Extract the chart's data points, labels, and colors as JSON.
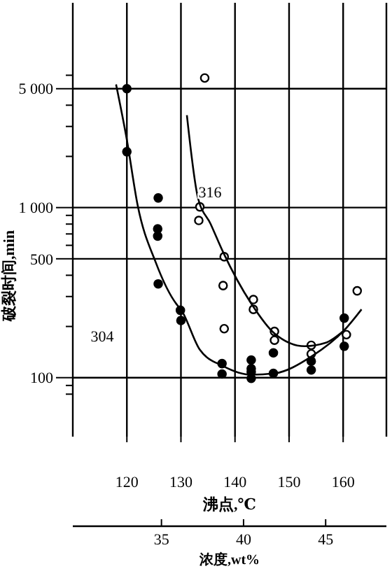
{
  "chart_data": {
    "type": "scatter",
    "xlabel": "沸点,℃",
    "ylabel": "破裂时间,min",
    "x2label": "浓度,wt%",
    "xlim": [
      110,
      168
    ],
    "xticks": [
      120,
      130,
      140,
      150,
      160
    ],
    "x2lim": [
      29.6,
      48.7
    ],
    "x2ticks": [
      35,
      40,
      45
    ],
    "ylim": [
      45,
      16000
    ],
    "log": "y",
    "grid": true,
    "marker": "circle",
    "yticks": [
      {
        "value": 80,
        "label": null
      },
      {
        "value": 90,
        "label": null
      },
      100,
      {
        "value": 200,
        "label": null
      },
      {
        "value": 300,
        "label": null
      },
      {
        "value": 400,
        "label": null
      },
      500,
      {
        "value": 600,
        "label": null
      },
      {
        "value": 700,
        "label": null
      },
      {
        "value": 800,
        "label": null
      },
      {
        "value": 900,
        "label": null
      },
      {
        "value": 1000,
        "label": "1 000"
      },
      {
        "value": 2000,
        "label": null
      },
      {
        "value": 3000,
        "label": null
      },
      {
        "value": 4000,
        "label": null
      },
      {
        "value": 5000,
        "label": "5 000"
      },
      {
        "value": 6000,
        "label": null
      }
    ],
    "series": [
      {
        "color": "#000000",
        "x": [
          120,
          120,
          125.8,
          125.7,
          125.7,
          125.8,
          129.9,
          130,
          137.6,
          137.6,
          143,
          143,
          143,
          143,
          147.1,
          147.1,
          154.1,
          154.1,
          160.2,
          160.2
        ],
        "values": [
          5000,
          2130,
          1140,
          750,
          680,
          356,
          249,
          217,
          121,
          105,
          127,
          113,
          108,
          99,
          140,
          106,
          125,
          111,
          224,
          153
        ]
      },
      {
        "color": "#000000",
        "x": [
          134.4,
          133.5,
          133.3,
          138,
          137.8,
          138,
          143.4,
          143.4,
          147.3,
          147.3,
          154.1,
          154.1,
          160.6,
          162.6
        ],
        "values": [
          5780,
          1010,
          840,
          514,
          348,
          194,
          288,
          252,
          187,
          166,
          155,
          138,
          179,
          324
        ]
      },
      {
        "type": "line",
        "marker": "none",
        "color": "#000000",
        "x": [
          118,
          120,
          122,
          125.3,
          129.2,
          130,
          133.5,
          137.8,
          143,
          147.3,
          154.1,
          160.2,
          163.4
        ],
        "values": [
          5300,
          2500,
          1030,
          480,
          270,
          252,
          146,
          117,
          104,
          106,
          133,
          190,
          252
        ]
      },
      {
        "type": "line",
        "marker": "none",
        "color": "#000000",
        "x": [
          131.1,
          133.1,
          135.5,
          137.8,
          143,
          147.3,
          152.9,
          156.7,
          160.2
        ],
        "values": [
          3490,
          1160,
          800,
          547,
          273,
          182,
          153,
          160,
          190
        ]
      }
    ],
    "annotations": [
      "304",
      "316"
    ]
  }
}
